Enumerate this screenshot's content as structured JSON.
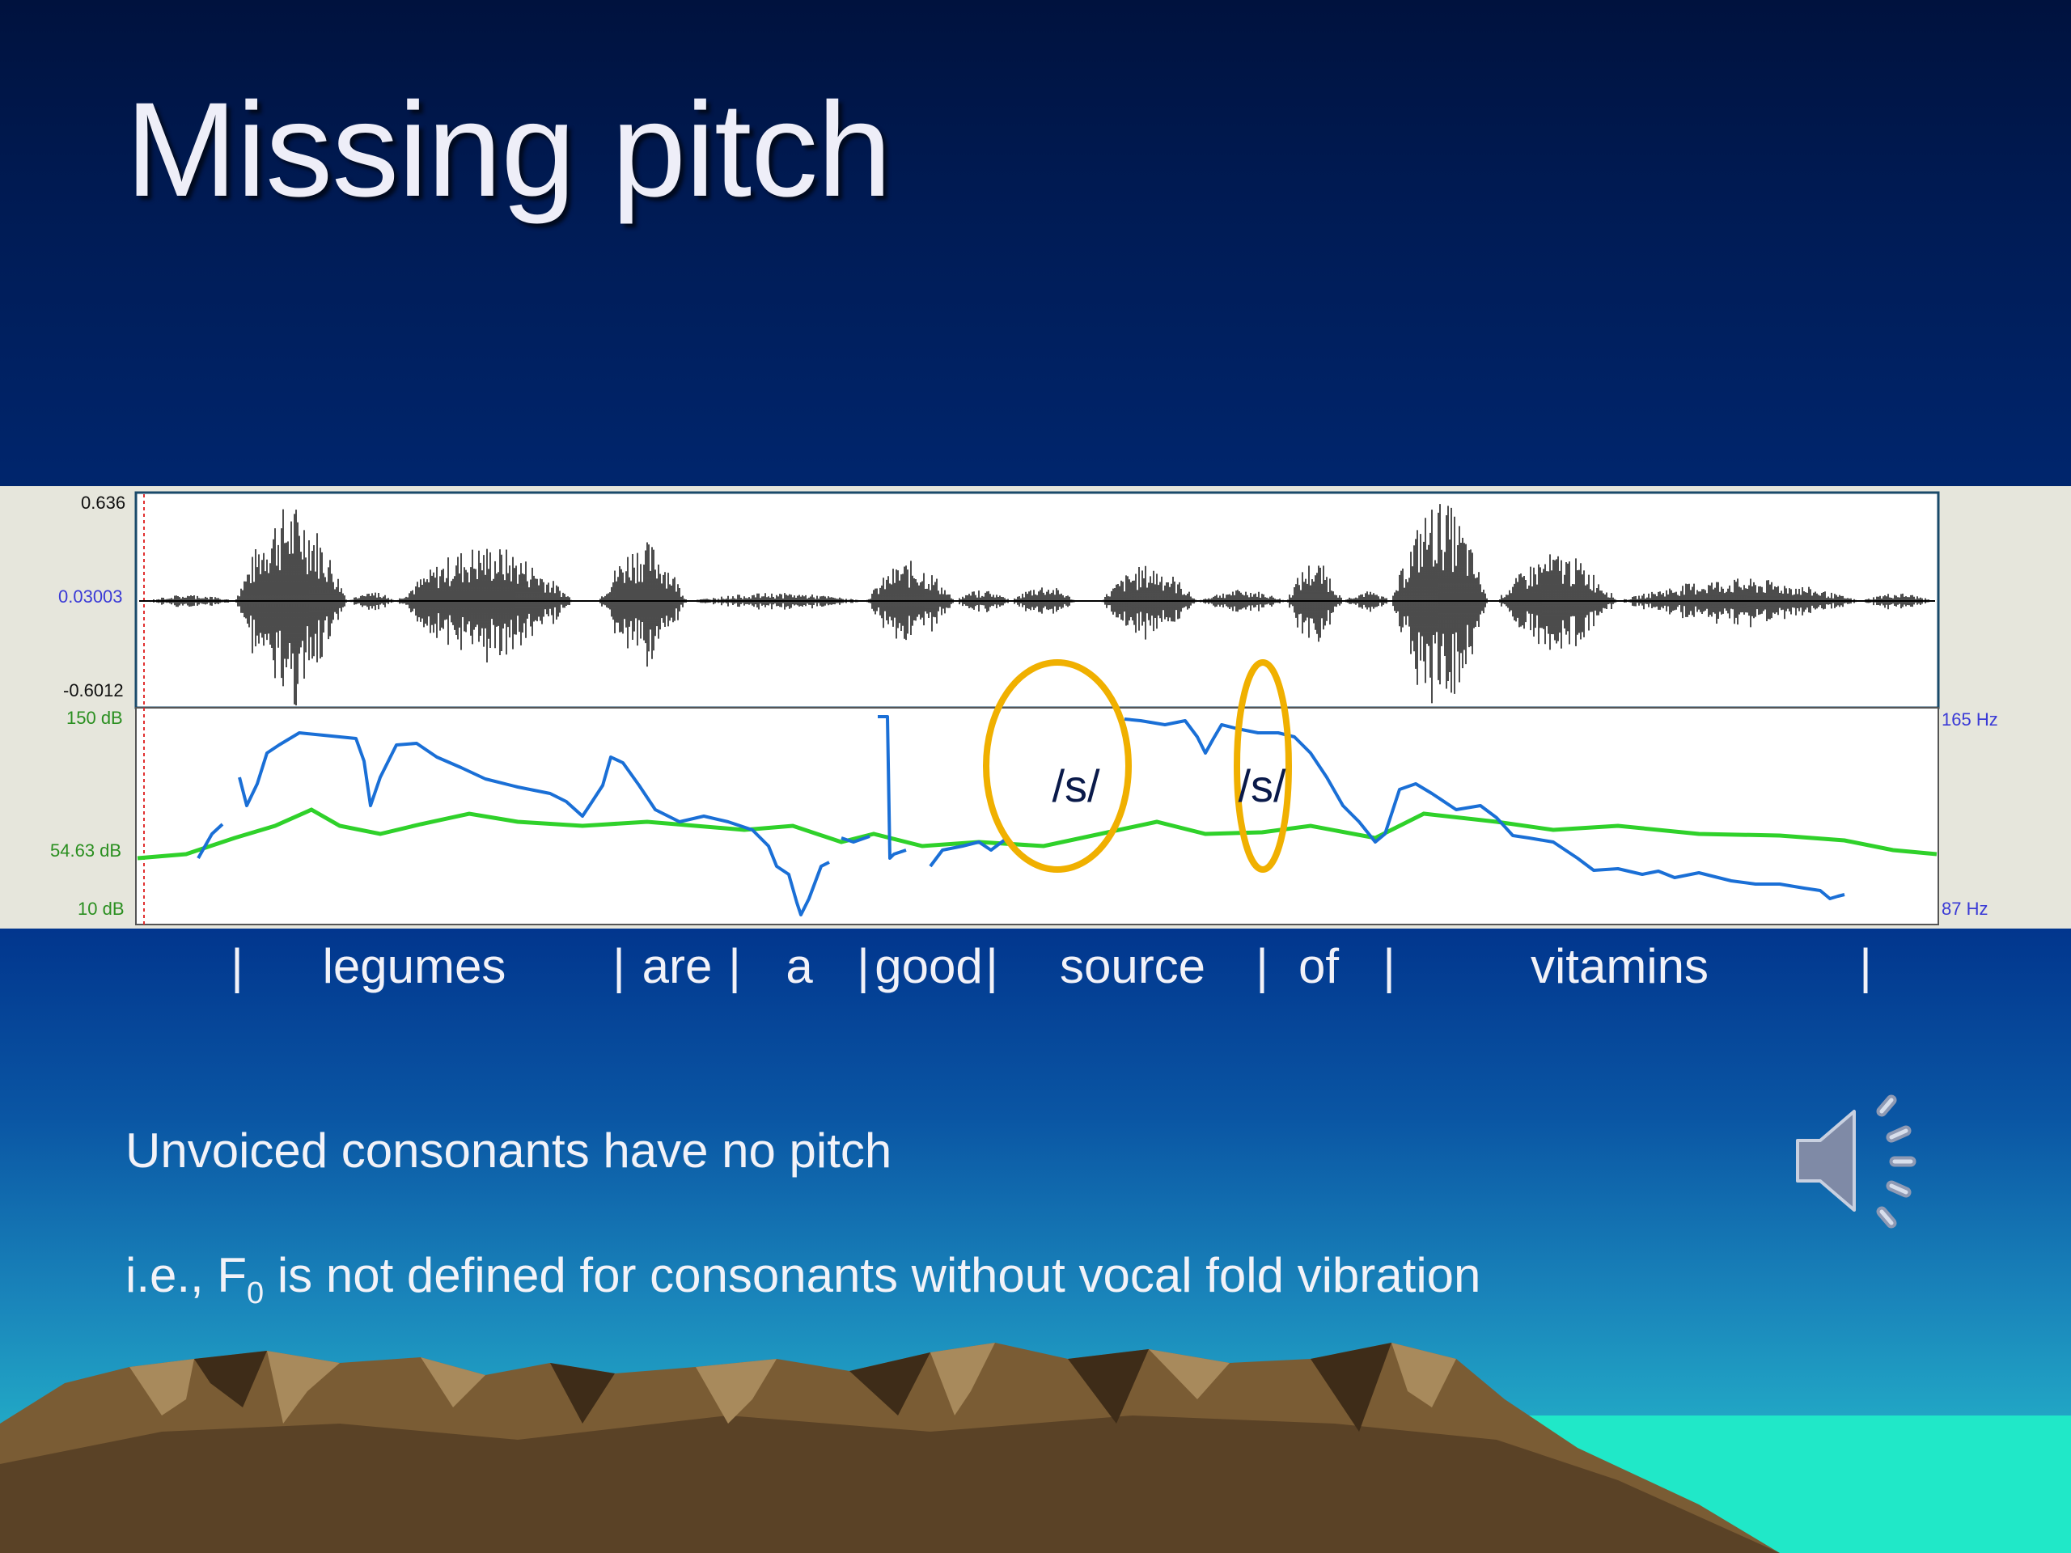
{
  "slide": {
    "title": "Missing pitch",
    "bullet_1": "Unvoiced consonants have no pitch",
    "bullet_2_prefix": "i.e., F",
    "bullet_2_sub": "0",
    "bullet_2_suffix": " is not defined for consonants without vocal fold vibration"
  },
  "analysis_panel": {
    "waveform_axis": {
      "top": "0.636",
      "mid": "0.03003",
      "bottom": "-0.6012"
    },
    "intensity_axis": {
      "top": "150 dB",
      "mid": "54.63 dB",
      "bottom": "10 dB"
    },
    "pitch_axis": {
      "top": "165 Hz",
      "bottom": "87 Hz"
    },
    "phoneme_marks": [
      "/s/",
      "/s/"
    ]
  },
  "words": {
    "sep_1": "|",
    "w1": "legumes",
    "sep_2": "|",
    "w2": "are",
    "sep_3": "|",
    "w3": "a",
    "sep_4": "|",
    "w4": "good",
    "sep_5": "|",
    "w5": "source",
    "sep_6": "|",
    "w6": "of",
    "sep_7": "|",
    "w7": "vitamins",
    "sep_8": "|"
  },
  "icons": {
    "audio": "speaker-icon"
  },
  "colors": {
    "pitch_line": "#1a6fd6",
    "intensity_line": "#2fd12a",
    "highlight_ellipse": "#f0b000",
    "waveform": "#000000"
  }
}
